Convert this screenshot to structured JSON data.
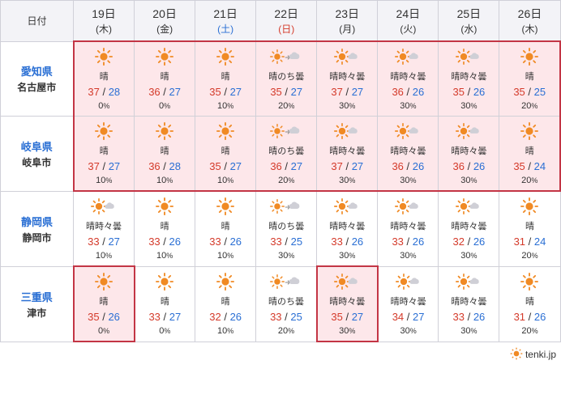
{
  "header_label": "日付",
  "colors": {
    "accent": "#2a6fd4",
    "danger": "#d43a2a",
    "highlight_bg": "#fde7ea",
    "highlight_border": "#c33545",
    "border": "#d0d0d8",
    "sun_orange": "#f08a24",
    "cloud_gray": "#cfcfd6"
  },
  "dates": [
    {
      "day": "19日",
      "dow": "(木)",
      "dow_class": ""
    },
    {
      "day": "20日",
      "dow": "(金)",
      "dow_class": ""
    },
    {
      "day": "21日",
      "dow": "(土)",
      "dow_class": "sat"
    },
    {
      "day": "22日",
      "dow": "(日)",
      "dow_class": "sun"
    },
    {
      "day": "23日",
      "dow": "(月)",
      "dow_class": ""
    },
    {
      "day": "24日",
      "dow": "(火)",
      "dow_class": ""
    },
    {
      "day": "25日",
      "dow": "(水)",
      "dow_class": ""
    },
    {
      "day": "26日",
      "dow": "(木)",
      "dow_class": ""
    }
  ],
  "rows": [
    {
      "pref": "愛知県",
      "city": "名古屋市",
      "cells": [
        {
          "icon": "sun",
          "desc": "晴",
          "hi": "37",
          "lo": "28",
          "precip": "0",
          "hl": true,
          "bt": true,
          "bl": true
        },
        {
          "icon": "sun",
          "desc": "晴",
          "hi": "36",
          "lo": "27",
          "precip": "0",
          "hl": true,
          "bt": true
        },
        {
          "icon": "sun",
          "desc": "晴",
          "hi": "35",
          "lo": "27",
          "precip": "10",
          "hl": true,
          "bt": true
        },
        {
          "icon": "sun_then_cloud",
          "desc": "晴のち曇",
          "hi": "35",
          "lo": "27",
          "precip": "20",
          "hl": true,
          "bt": true
        },
        {
          "icon": "sun_some_cloud",
          "desc": "晴時々曇",
          "hi": "37",
          "lo": "27",
          "precip": "30",
          "hl": true,
          "bt": true
        },
        {
          "icon": "sun_some_cloud",
          "desc": "晴時々曇",
          "hi": "36",
          "lo": "26",
          "precip": "30",
          "hl": true,
          "bt": true
        },
        {
          "icon": "sun_some_cloud",
          "desc": "晴時々曇",
          "hi": "35",
          "lo": "26",
          "precip": "30",
          "hl": true,
          "bt": true
        },
        {
          "icon": "sun",
          "desc": "晴",
          "hi": "35",
          "lo": "25",
          "precip": "20",
          "hl": true,
          "bt": true,
          "br": true
        }
      ]
    },
    {
      "pref": "岐阜県",
      "city": "岐阜市",
      "cells": [
        {
          "icon": "sun",
          "desc": "晴",
          "hi": "37",
          "lo": "27",
          "precip": "10",
          "hl": true,
          "bl": true,
          "bb": true
        },
        {
          "icon": "sun",
          "desc": "晴",
          "hi": "36",
          "lo": "28",
          "precip": "10",
          "hl": true,
          "bb": true
        },
        {
          "icon": "sun",
          "desc": "晴",
          "hi": "35",
          "lo": "27",
          "precip": "10",
          "hl": true,
          "bb": true
        },
        {
          "icon": "sun_then_cloud",
          "desc": "晴のち曇",
          "hi": "36",
          "lo": "27",
          "precip": "20",
          "hl": true,
          "bb": true
        },
        {
          "icon": "sun_some_cloud",
          "desc": "晴時々曇",
          "hi": "37",
          "lo": "27",
          "precip": "30",
          "hl": true,
          "bb": true
        },
        {
          "icon": "sun_some_cloud",
          "desc": "晴時々曇",
          "hi": "36",
          "lo": "26",
          "precip": "30",
          "hl": true,
          "bb": true
        },
        {
          "icon": "sun_some_cloud",
          "desc": "晴時々曇",
          "hi": "36",
          "lo": "26",
          "precip": "30",
          "hl": true,
          "bb": true
        },
        {
          "icon": "sun",
          "desc": "晴",
          "hi": "35",
          "lo": "24",
          "precip": "20",
          "hl": true,
          "bb": true,
          "br": true
        }
      ]
    },
    {
      "pref": "静岡県",
      "city": "静岡市",
      "cells": [
        {
          "icon": "sun_some_cloud",
          "desc": "晴時々曇",
          "hi": "33",
          "lo": "27",
          "precip": "10"
        },
        {
          "icon": "sun",
          "desc": "晴",
          "hi": "33",
          "lo": "26",
          "precip": "10"
        },
        {
          "icon": "sun",
          "desc": "晴",
          "hi": "33",
          "lo": "26",
          "precip": "10"
        },
        {
          "icon": "sun_then_cloud",
          "desc": "晴のち曇",
          "hi": "33",
          "lo": "25",
          "precip": "30"
        },
        {
          "icon": "sun_some_cloud",
          "desc": "晴時々曇",
          "hi": "33",
          "lo": "26",
          "precip": "30"
        },
        {
          "icon": "sun_some_cloud",
          "desc": "晴時々曇",
          "hi": "33",
          "lo": "26",
          "precip": "30"
        },
        {
          "icon": "sun_some_cloud",
          "desc": "晴時々曇",
          "hi": "32",
          "lo": "26",
          "precip": "30"
        },
        {
          "icon": "sun",
          "desc": "晴",
          "hi": "31",
          "lo": "24",
          "precip": "20"
        }
      ]
    },
    {
      "pref": "三重県",
      "city": "津市",
      "cells": [
        {
          "icon": "sun",
          "desc": "晴",
          "hi": "35",
          "lo": "26",
          "precip": "0",
          "hl": true,
          "bt": true,
          "bb": true,
          "bl": true,
          "br": true
        },
        {
          "icon": "sun",
          "desc": "晴",
          "hi": "33",
          "lo": "27",
          "precip": "0"
        },
        {
          "icon": "sun",
          "desc": "晴",
          "hi": "32",
          "lo": "26",
          "precip": "10"
        },
        {
          "icon": "sun_then_cloud",
          "desc": "晴のち曇",
          "hi": "33",
          "lo": "25",
          "precip": "20"
        },
        {
          "icon": "sun_some_cloud",
          "desc": "晴時々曇",
          "hi": "35",
          "lo": "27",
          "precip": "30",
          "hl": true,
          "bt": true,
          "bb": true,
          "bl": true,
          "br": true
        },
        {
          "icon": "sun_some_cloud",
          "desc": "晴時々曇",
          "hi": "34",
          "lo": "27",
          "precip": "30"
        },
        {
          "icon": "sun_some_cloud",
          "desc": "晴時々曇",
          "hi": "33",
          "lo": "26",
          "precip": "30"
        },
        {
          "icon": "sun",
          "desc": "晴",
          "hi": "31",
          "lo": "26",
          "precip": "20"
        }
      ]
    }
  ],
  "footer": {
    "brand": "tenki.jp"
  }
}
